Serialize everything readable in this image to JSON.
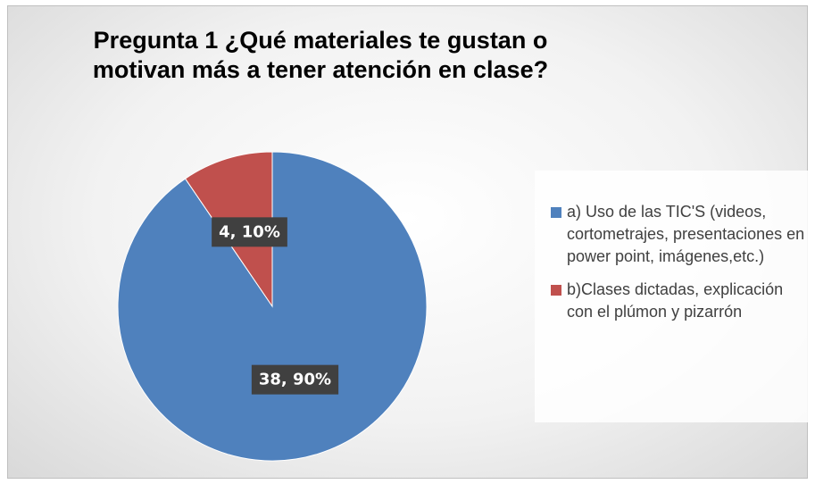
{
  "chart_data": {
    "type": "pie",
    "title": "Pregunta 1 ¿Qué materiales te gustan o motivan más a tener atención en clase?",
    "categories": [
      "a) Uso de las TIC'S (videos, cortometrajes, presentaciones en power point, imágenes,etc.)",
      "b)Clases dictadas, explicación con el plúmon y pizarrón"
    ],
    "values": [
      38,
      4
    ],
    "value_labels": [
      "38, 90%",
      "4, 10%"
    ],
    "colors": [
      "#4f81bd",
      "#c0504d"
    ],
    "legend": "right"
  }
}
